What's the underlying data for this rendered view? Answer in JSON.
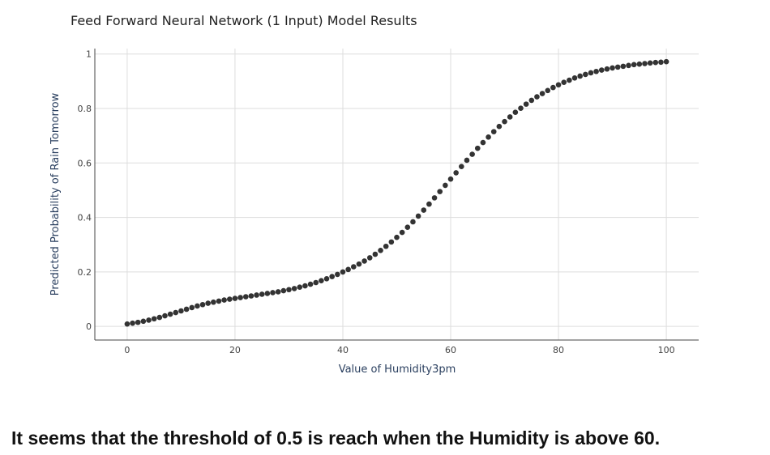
{
  "chart_data": {
    "type": "scatter",
    "title": "Feed Forward Neural Network (1 Input) Model Results",
    "xlabel": "Value of Humidity3pm",
    "ylabel": "Predicted Probability of Rain Tomorrow",
    "xlim": [
      -6,
      106
    ],
    "ylim": [
      -0.05,
      1.02
    ],
    "xticks": [
      0,
      20,
      40,
      60,
      80,
      100
    ],
    "yticks": [
      0,
      0.2,
      0.4,
      0.6,
      0.8,
      1
    ],
    "ytick_labels": [
      "0",
      "0.2",
      "0.4",
      "0.6",
      "0.8",
      "1"
    ],
    "grid": true,
    "marker_color": "#333333",
    "x": [
      0,
      1,
      2,
      3,
      4,
      5,
      6,
      7,
      8,
      9,
      10,
      11,
      12,
      13,
      14,
      15,
      16,
      17,
      18,
      19,
      20,
      21,
      22,
      23,
      24,
      25,
      26,
      27,
      28,
      29,
      30,
      31,
      32,
      33,
      34,
      35,
      36,
      37,
      38,
      39,
      40,
      41,
      42,
      43,
      44,
      45,
      46,
      47,
      48,
      49,
      50,
      51,
      52,
      53,
      54,
      55,
      56,
      57,
      58,
      59,
      60,
      61,
      62,
      63,
      64,
      65,
      66,
      67,
      68,
      69,
      70,
      71,
      72,
      73,
      74,
      75,
      76,
      77,
      78,
      79,
      80,
      81,
      82,
      83,
      84,
      85,
      86,
      87,
      88,
      89,
      90,
      91,
      92,
      93,
      94,
      95,
      96,
      97,
      98,
      99,
      100
    ],
    "y": [
      0.009,
      0.012,
      0.015,
      0.019,
      0.023,
      0.028,
      0.033,
      0.039,
      0.045,
      0.051,
      0.057,
      0.063,
      0.069,
      0.075,
      0.08,
      0.085,
      0.089,
      0.093,
      0.097,
      0.1,
      0.103,
      0.106,
      0.109,
      0.112,
      0.115,
      0.118,
      0.121,
      0.124,
      0.127,
      0.131,
      0.135,
      0.139,
      0.144,
      0.149,
      0.155,
      0.161,
      0.168,
      0.175,
      0.183,
      0.191,
      0.2,
      0.209,
      0.219,
      0.229,
      0.24,
      0.252,
      0.265,
      0.279,
      0.294,
      0.31,
      0.327,
      0.345,
      0.364,
      0.384,
      0.405,
      0.427,
      0.449,
      0.472,
      0.495,
      0.518,
      0.541,
      0.564,
      0.587,
      0.61,
      0.632,
      0.654,
      0.675,
      0.695,
      0.715,
      0.734,
      0.752,
      0.769,
      0.786,
      0.801,
      0.816,
      0.83,
      0.843,
      0.855,
      0.866,
      0.877,
      0.887,
      0.896,
      0.904,
      0.912,
      0.919,
      0.925,
      0.931,
      0.936,
      0.941,
      0.945,
      0.949,
      0.952,
      0.955,
      0.958,
      0.961,
      0.963,
      0.965,
      0.967,
      0.969,
      0.97,
      0.972
    ]
  },
  "caption": "It seems that the threshold of 0.5 is reach when the Humidity is above 60."
}
